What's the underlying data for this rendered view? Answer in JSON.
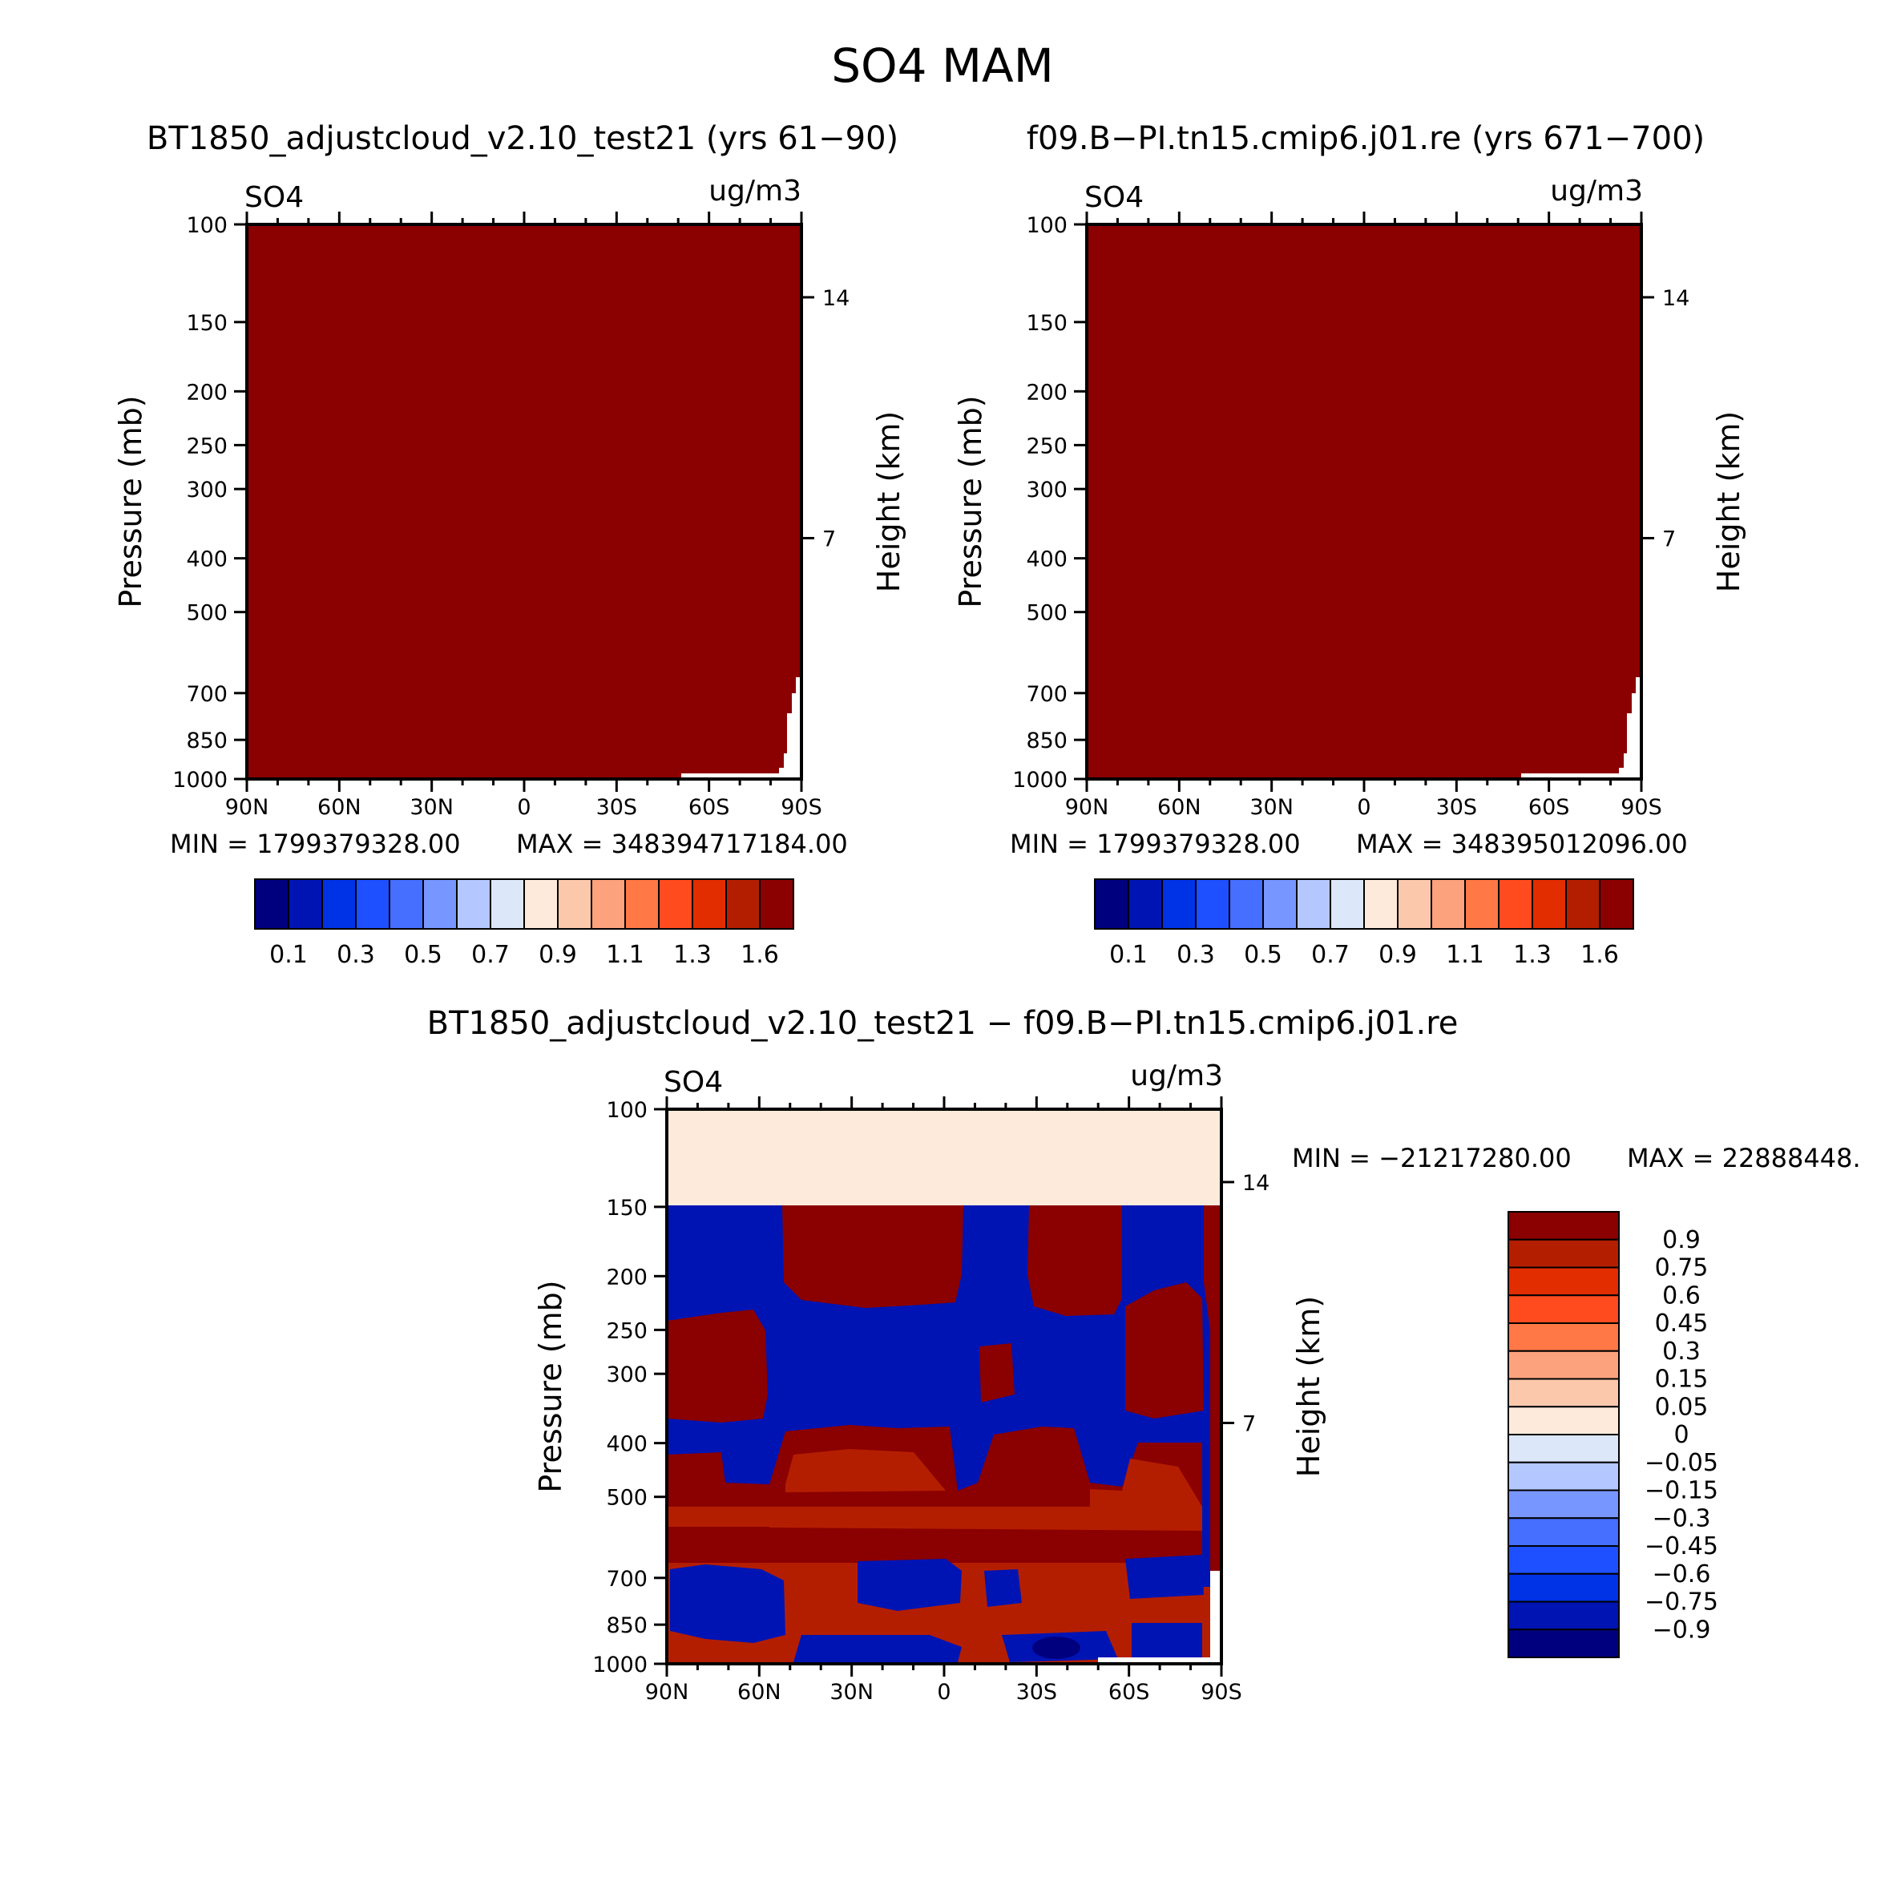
{
  "title": "SO4  MAM",
  "colors": {
    "blues": [
      "#00007f",
      "#0014b4",
      "#0032e6",
      "#1e50ff",
      "#466eff",
      "#7896ff",
      "#b4c8ff",
      "#dce8fa"
    ],
    "reds": [
      "#fdeada",
      "#fcc8ac",
      "#fca27c",
      "#ff7846",
      "#ff4b1e",
      "#e12d00",
      "#b41e00",
      "#8b0000"
    ]
  },
  "chart_data": [
    {
      "id": "left",
      "type": "heatmap",
      "title": "BT1850_adjustcloud_v2.10_test21 (yrs 61−90)",
      "corner_left": "SO4",
      "corner_right": "ug/m3",
      "xlabel": "",
      "ylabel": "Pressure (mb)",
      "ylabel_right": "Height (km)",
      "x_ticks": [
        "90N",
        "60N",
        "30N",
        "0",
        "30S",
        "60S",
        "90S"
      ],
      "y_ticks": [
        "100",
        "150",
        "200",
        "250",
        "300",
        "400",
        "500",
        "700",
        "850",
        "1000"
      ],
      "y_ticks_right": [
        "14",
        "7"
      ],
      "ylim": [
        100,
        1000
      ],
      "yscale": "log",
      "min_text": "MIN = 1799379328.00",
      "max_text": "MAX = 348394717184.00",
      "fill": "above colorbar maximum everywhere",
      "colorbar": {
        "orientation": "horizontal",
        "labels": [
          "0.1",
          "0.3",
          "0.5",
          "0.7",
          "0.9",
          "1.1",
          "1.3",
          "1.6"
        ]
      }
    },
    {
      "id": "right",
      "type": "heatmap",
      "title": "f09.B−PI.tn15.cmip6.j01.re (yrs 671−700)",
      "corner_left": "SO4",
      "corner_right": "ug/m3",
      "xlabel": "",
      "ylabel": "Pressure (mb)",
      "ylabel_right": "Height (km)",
      "x_ticks": [
        "90N",
        "60N",
        "30N",
        "0",
        "30S",
        "60S",
        "90S"
      ],
      "y_ticks": [
        "100",
        "150",
        "200",
        "250",
        "300",
        "400",
        "500",
        "700",
        "850",
        "1000"
      ],
      "y_ticks_right": [
        "14",
        "7"
      ],
      "ylim": [
        100,
        1000
      ],
      "yscale": "log",
      "min_text": "MIN = 1799379328.00",
      "max_text": "MAX = 348395012096.00",
      "fill": "above colorbar maximum everywhere",
      "colorbar": {
        "orientation": "horizontal",
        "labels": [
          "0.1",
          "0.3",
          "0.5",
          "0.7",
          "0.9",
          "1.1",
          "1.3",
          "1.6"
        ]
      }
    },
    {
      "id": "diff",
      "type": "heatmap",
      "title": "BT1850_adjustcloud_v2.10_test21 − f09.B−PI.tn15.cmip6.j01.re",
      "corner_left": "SO4",
      "corner_right": "ug/m3",
      "xlabel": "",
      "ylabel": "Pressure (mb)",
      "ylabel_right": "Height (km)",
      "x_ticks": [
        "90N",
        "60N",
        "30N",
        "0",
        "30S",
        "60S",
        "90S"
      ],
      "y_ticks": [
        "100",
        "150",
        "200",
        "250",
        "300",
        "400",
        "500",
        "700",
        "850",
        "1000"
      ],
      "y_ticks_right": [
        "14",
        "7"
      ],
      "ylim": [
        100,
        1000
      ],
      "yscale": "log",
      "min_text": "MIN = −21217280.00",
      "max_text": "MAX = 22888448.",
      "fill": "alternating saturated positive and negative bands below 150 mb; near-zero positive above 150 mb",
      "colorbar": {
        "orientation": "vertical",
        "labels": [
          "0.9",
          "0.75",
          "0.6",
          "0.45",
          "0.3",
          "0.15",
          "0.05",
          "0",
          "−0.05",
          "−0.15",
          "−0.3",
          "−0.45",
          "−0.6",
          "−0.75",
          "−0.9"
        ]
      }
    }
  ]
}
